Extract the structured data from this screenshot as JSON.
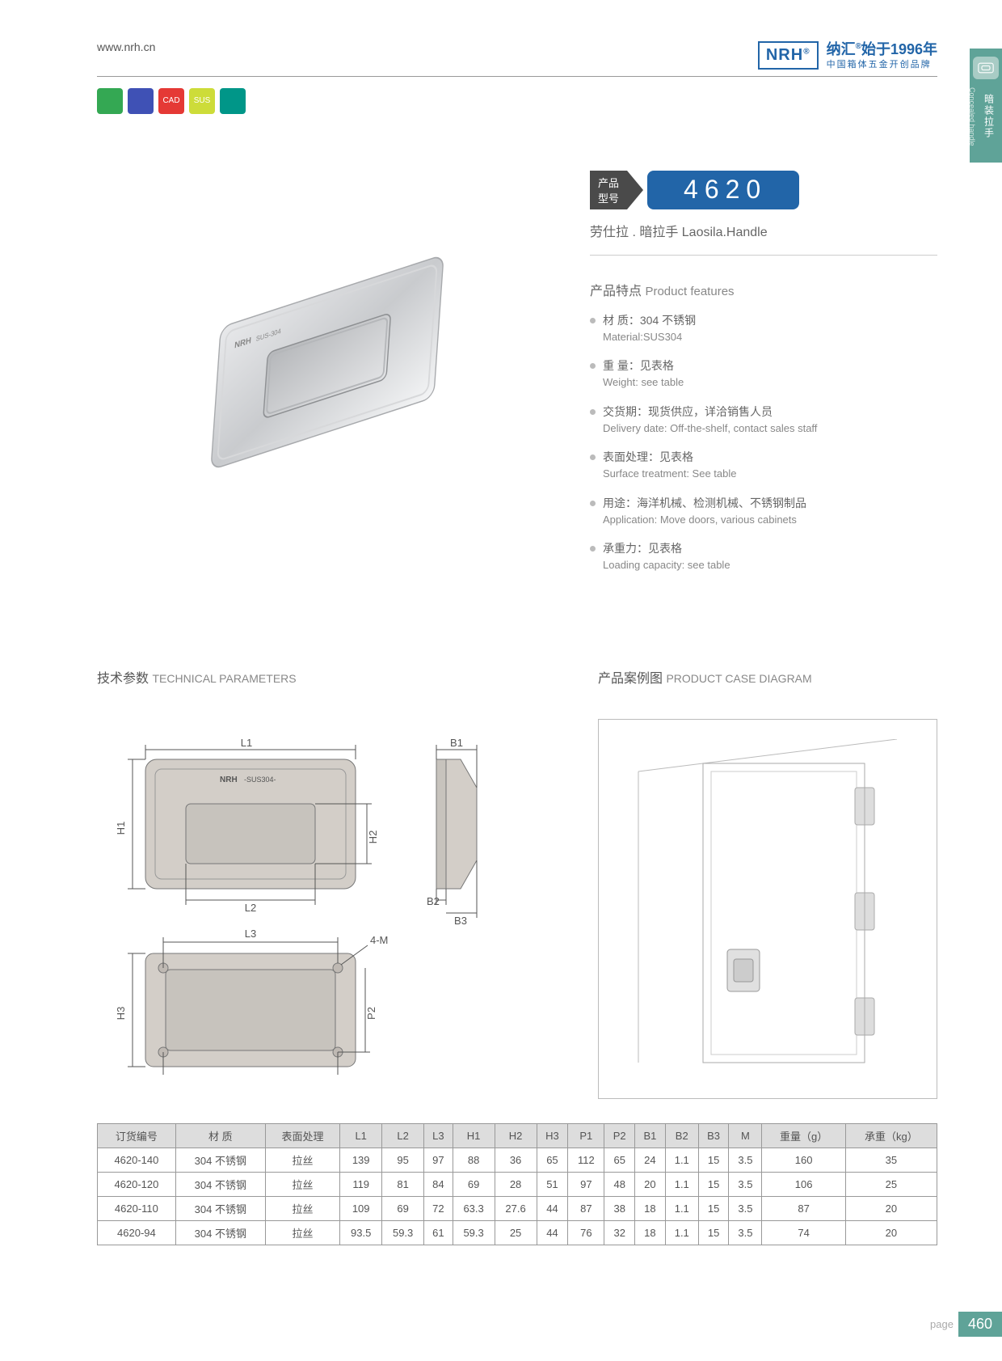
{
  "header": {
    "url": "www.nrh.cn",
    "logo": "NRH",
    "brand_cn": "纳汇",
    "since": "始于1996年",
    "tagline": "中国箱体五金开创品牌"
  },
  "side_tab": {
    "cn": "暗装拉手",
    "en": "Concealed handle",
    "icon": "▭"
  },
  "icon_row": {
    "colors": [
      "#34a853",
      "#3f51b5",
      "#e53935",
      "#cddc39",
      "#009688"
    ],
    "labels": [
      "",
      "",
      "CAD",
      "SUS",
      ""
    ]
  },
  "model": {
    "label_l1": "产品",
    "label_l2": "型号",
    "number": "4620"
  },
  "subtitle": "劳仕拉 . 暗拉手  Laosila.Handle",
  "features": {
    "title_cn": "产品特点",
    "title_en": "Product features",
    "items": [
      {
        "cn": "材 质：304 不锈钢",
        "en": "Material:SUS304"
      },
      {
        "cn": "重 量：见表格",
        "en": "Weight: see table"
      },
      {
        "cn": "交货期：现货供应，详洽销售人员",
        "en": "Delivery date: Off-the-shelf, contact sales staff"
      },
      {
        "cn": "表面处理：见表格",
        "en": "Surface treatment: See table"
      },
      {
        "cn": "用途：海洋机械、检测机械、不锈钢制品",
        "en": "Application: Move doors, various cabinets"
      },
      {
        "cn": "承重力：见表格",
        "en": "Loading capacity: see table"
      }
    ]
  },
  "tech": {
    "title_cn": "技术参数",
    "title_en": "TECHNICAL PARAMETERS",
    "labels": {
      "L1": "L1",
      "L2": "L2",
      "L3": "L3",
      "H1": "H1",
      "H2": "H2",
      "H3": "H3",
      "B1": "B1",
      "B2": "B2",
      "B3": "B3",
      "P1": "P1",
      "P2": "P2",
      "M4": "4-M",
      "brand": "NRH",
      "mat": "-SUS304-"
    }
  },
  "case": {
    "title_cn": "产品案例图",
    "title_en": "PRODUCT CASE DIAGRAM"
  },
  "table": {
    "columns": [
      "订货编号",
      "材 质",
      "表面处理",
      "L1",
      "L2",
      "L3",
      "H1",
      "H2",
      "H3",
      "P1",
      "P2",
      "B1",
      "B2",
      "B3",
      "M",
      "重量（g）",
      "承重（kg）"
    ],
    "rows": [
      [
        "4620-140",
        "304 不锈钢",
        "拉丝",
        "139",
        "95",
        "97",
        "88",
        "36",
        "65",
        "112",
        "65",
        "24",
        "1.1",
        "15",
        "3.5",
        "160",
        "35"
      ],
      [
        "4620-120",
        "304 不锈钢",
        "拉丝",
        "119",
        "81",
        "84",
        "69",
        "28",
        "51",
        "97",
        "48",
        "20",
        "1.1",
        "15",
        "3.5",
        "106",
        "25"
      ],
      [
        "4620-110",
        "304 不锈钢",
        "拉丝",
        "109",
        "69",
        "72",
        "63.3",
        "27.6",
        "44",
        "87",
        "38",
        "18",
        "1.1",
        "15",
        "3.5",
        "87",
        "20"
      ],
      [
        "4620-94",
        "304 不锈钢",
        "拉丝",
        "93.5",
        "59.3",
        "61",
        "59.3",
        "25",
        "44",
        "76",
        "32",
        "18",
        "1.1",
        "15",
        "3.5",
        "74",
        "20"
      ]
    ]
  },
  "footer": {
    "label": "page",
    "number": "460"
  }
}
